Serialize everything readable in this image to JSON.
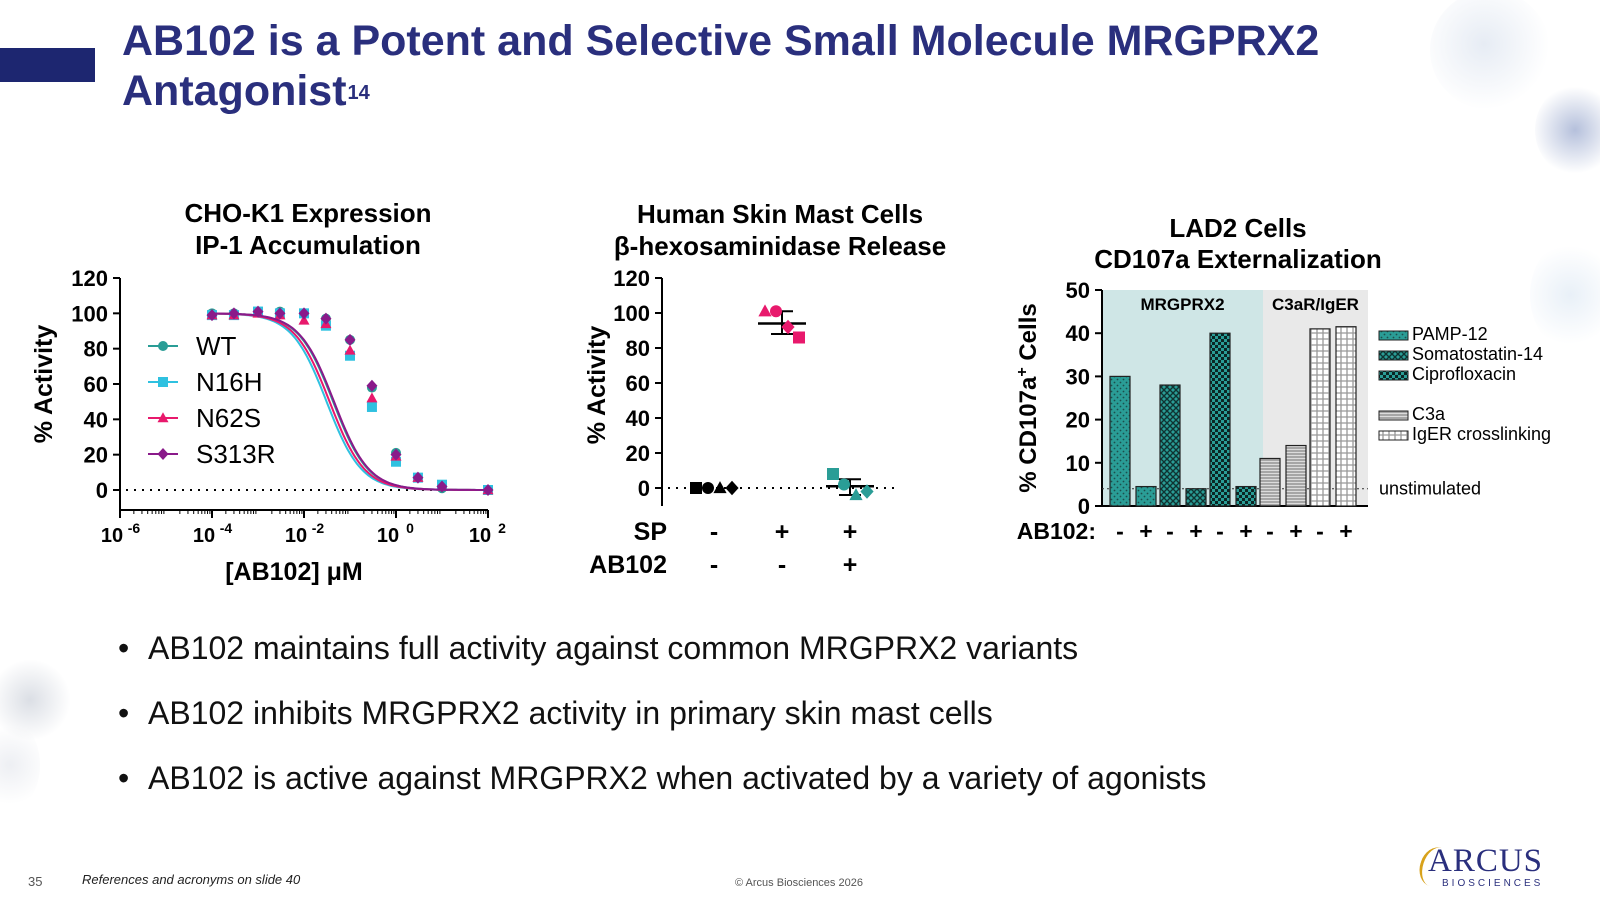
{
  "slide": {
    "title": "AB102 is a Potent and Selective Small Molecule MRGPRX2 Antagonist",
    "title_superscript": "14",
    "bullets": [
      "AB102 maintains full activity against common MRGPRX2 variants",
      "AB102 inhibits MRGPRX2 activity in primary skin mast cells",
      "AB102 is active against MRGPRX2 when activated by a variety of agonists"
    ],
    "slide_number": "35",
    "references": "References and acronyms on slide 40",
    "copyright": "© Arcus Biosciences 2026",
    "logo": {
      "main": "ARCUS",
      "sub": "BIOSCIENCES"
    },
    "colors": {
      "title": "#2a2f7d",
      "accent_bar": "#1d2670",
      "teal": "#2a9d96",
      "cyan": "#2fc1e0",
      "pink": "#e8196c",
      "purple": "#8a1a8a"
    }
  },
  "chart_data": [
    {
      "type": "line",
      "title": "CHO-K1 Expression",
      "subtitle": "IP-1 Accumulation",
      "xlabel": "[AB102] μM",
      "ylabel": "% Activity",
      "x_scale": "log",
      "xlim": [
        1e-06,
        100
      ],
      "x_ticks": [
        "10",
        "10",
        "10",
        "10",
        "10"
      ],
      "x_tick_exponents": [
        "-6",
        "-4",
        "-2",
        "0",
        "2"
      ],
      "ylim": [
        0,
        120
      ],
      "y_ticks": [
        "0",
        "20",
        "40",
        "60",
        "80",
        "100",
        "120"
      ],
      "reference_line": 0,
      "series": [
        {
          "name": "WT",
          "color": "#2a9d96",
          "marker": "circle",
          "x": [
            0.0001,
            0.0003,
            0.001,
            0.003,
            0.01,
            0.03,
            0.1,
            0.3,
            1,
            3,
            10,
            100
          ],
          "values": [
            100,
            100,
            101,
            101,
            100,
            97,
            85,
            58,
            21,
            7,
            1,
            0
          ],
          "ic50": 0.043
        },
        {
          "name": "N16H",
          "color": "#2fc1e0",
          "marker": "square",
          "x": [
            0.0001,
            0.0003,
            0.001,
            0.003,
            0.01,
            0.03,
            0.1,
            0.3,
            1,
            3,
            10,
            100
          ],
          "values": [
            99,
            99,
            101,
            100,
            100,
            93,
            76,
            47,
            16,
            7,
            3,
            0
          ],
          "ic50": 0.031
        },
        {
          "name": "N62S",
          "color": "#e8196c",
          "marker": "triangle",
          "x": [
            0.0001,
            0.0003,
            0.001,
            0.003,
            0.01,
            0.03,
            0.1,
            0.3,
            1,
            3,
            10,
            100
          ],
          "values": [
            99,
            99,
            100,
            99,
            96,
            94,
            79,
            52,
            19,
            7,
            2,
            0
          ],
          "ic50": 0.036
        },
        {
          "name": "S313R",
          "color": "#8a1a8a",
          "marker": "diamond",
          "x": [
            0.0001,
            0.0003,
            0.001,
            0.003,
            0.01,
            0.03,
            0.1,
            0.3,
            1,
            3,
            10,
            100
          ],
          "values": [
            99,
            100,
            101,
            100,
            100,
            97,
            85,
            59,
            20,
            7,
            2,
            0
          ],
          "ic50": 0.045
        }
      ],
      "legend": "inside-left"
    },
    {
      "type": "scatter",
      "title": "Human Skin Mast Cells",
      "subtitle": "β-hexosaminidase Release",
      "ylabel": "% Activity",
      "ylim": [
        0,
        120
      ],
      "y_ticks": [
        "0",
        "20",
        "40",
        "60",
        "80",
        "100",
        "120"
      ],
      "reference_line": 0,
      "condition_rows": [
        {
          "label": "SP",
          "values": [
            "-",
            "+",
            "+"
          ]
        },
        {
          "label": "AB102",
          "values": [
            "-",
            "-",
            "+"
          ]
        }
      ],
      "groups": [
        {
          "points": [
            {
              "value": 0,
              "marker": "square",
              "color": "#000000"
            },
            {
              "value": 0,
              "marker": "circle",
              "color": "#000000"
            },
            {
              "value": 0,
              "marker": "triangle",
              "color": "#000000"
            },
            {
              "value": 0,
              "marker": "diamond",
              "color": "#000000"
            }
          ]
        },
        {
          "mean": 94,
          "error_low": 88,
          "error_high": 101,
          "points": [
            {
              "value": 101,
              "marker": "triangle",
              "color": "#e8196c"
            },
            {
              "value": 101,
              "marker": "circle",
              "color": "#e8196c"
            },
            {
              "value": 92,
              "marker": "diamond",
              "color": "#e8196c"
            },
            {
              "value": 86,
              "marker": "square",
              "color": "#e8196c"
            }
          ]
        },
        {
          "mean": 1,
          "error_low": -4,
          "error_high": 5,
          "points": [
            {
              "value": 8,
              "marker": "square",
              "color": "#2a9d96"
            },
            {
              "value": 2,
              "marker": "circle",
              "color": "#2a9d96"
            },
            {
              "value": -4,
              "marker": "triangle",
              "color": "#2a9d96"
            },
            {
              "value": -2,
              "marker": "diamond",
              "color": "#2a9d96"
            }
          ]
        }
      ]
    },
    {
      "type": "bar",
      "title": "LAD2 Cells",
      "subtitle": "CD107a Externalization",
      "ylabel": "% CD107a",
      "ylabel_superscript": "+",
      "ylabel_suffix": " Cells",
      "ylim": [
        0,
        50
      ],
      "y_ticks": [
        "0",
        "10",
        "20",
        "30",
        "40",
        "50"
      ],
      "row_label": "AB102:",
      "regions": [
        {
          "label": "MRGPRX2",
          "color": "#cfe6e6"
        },
        {
          "label": "C3aR/IgER",
          "color": "#e9e9e9"
        }
      ],
      "reference_line": {
        "value": 4,
        "label": "unstimulated"
      },
      "series": [
        {
          "name": "PAMP-12",
          "pattern": "dots",
          "color": "#2a9d96",
          "values": [
            30,
            4.5
          ],
          "ab102": [
            "-",
            "+"
          ]
        },
        {
          "name": "Somatostatin-14",
          "pattern": "crosshatch",
          "color": "#2a9d96",
          "values": [
            28,
            4
          ],
          "ab102": [
            "-",
            "+"
          ]
        },
        {
          "name": "Ciprofloxacin",
          "pattern": "checker",
          "color": "#2a9d96",
          "values": [
            40,
            4.5
          ],
          "ab102": [
            "-",
            "+"
          ]
        },
        {
          "name": "C3a",
          "pattern": "hlines",
          "color": "#999999",
          "values": [
            11,
            14
          ],
          "ab102": [
            "-",
            "+"
          ]
        },
        {
          "name": "IgER crosslinking",
          "pattern": "grid",
          "color": "#999999",
          "values": [
            41,
            41.5
          ],
          "ab102": [
            "-",
            "+"
          ]
        }
      ]
    }
  ]
}
